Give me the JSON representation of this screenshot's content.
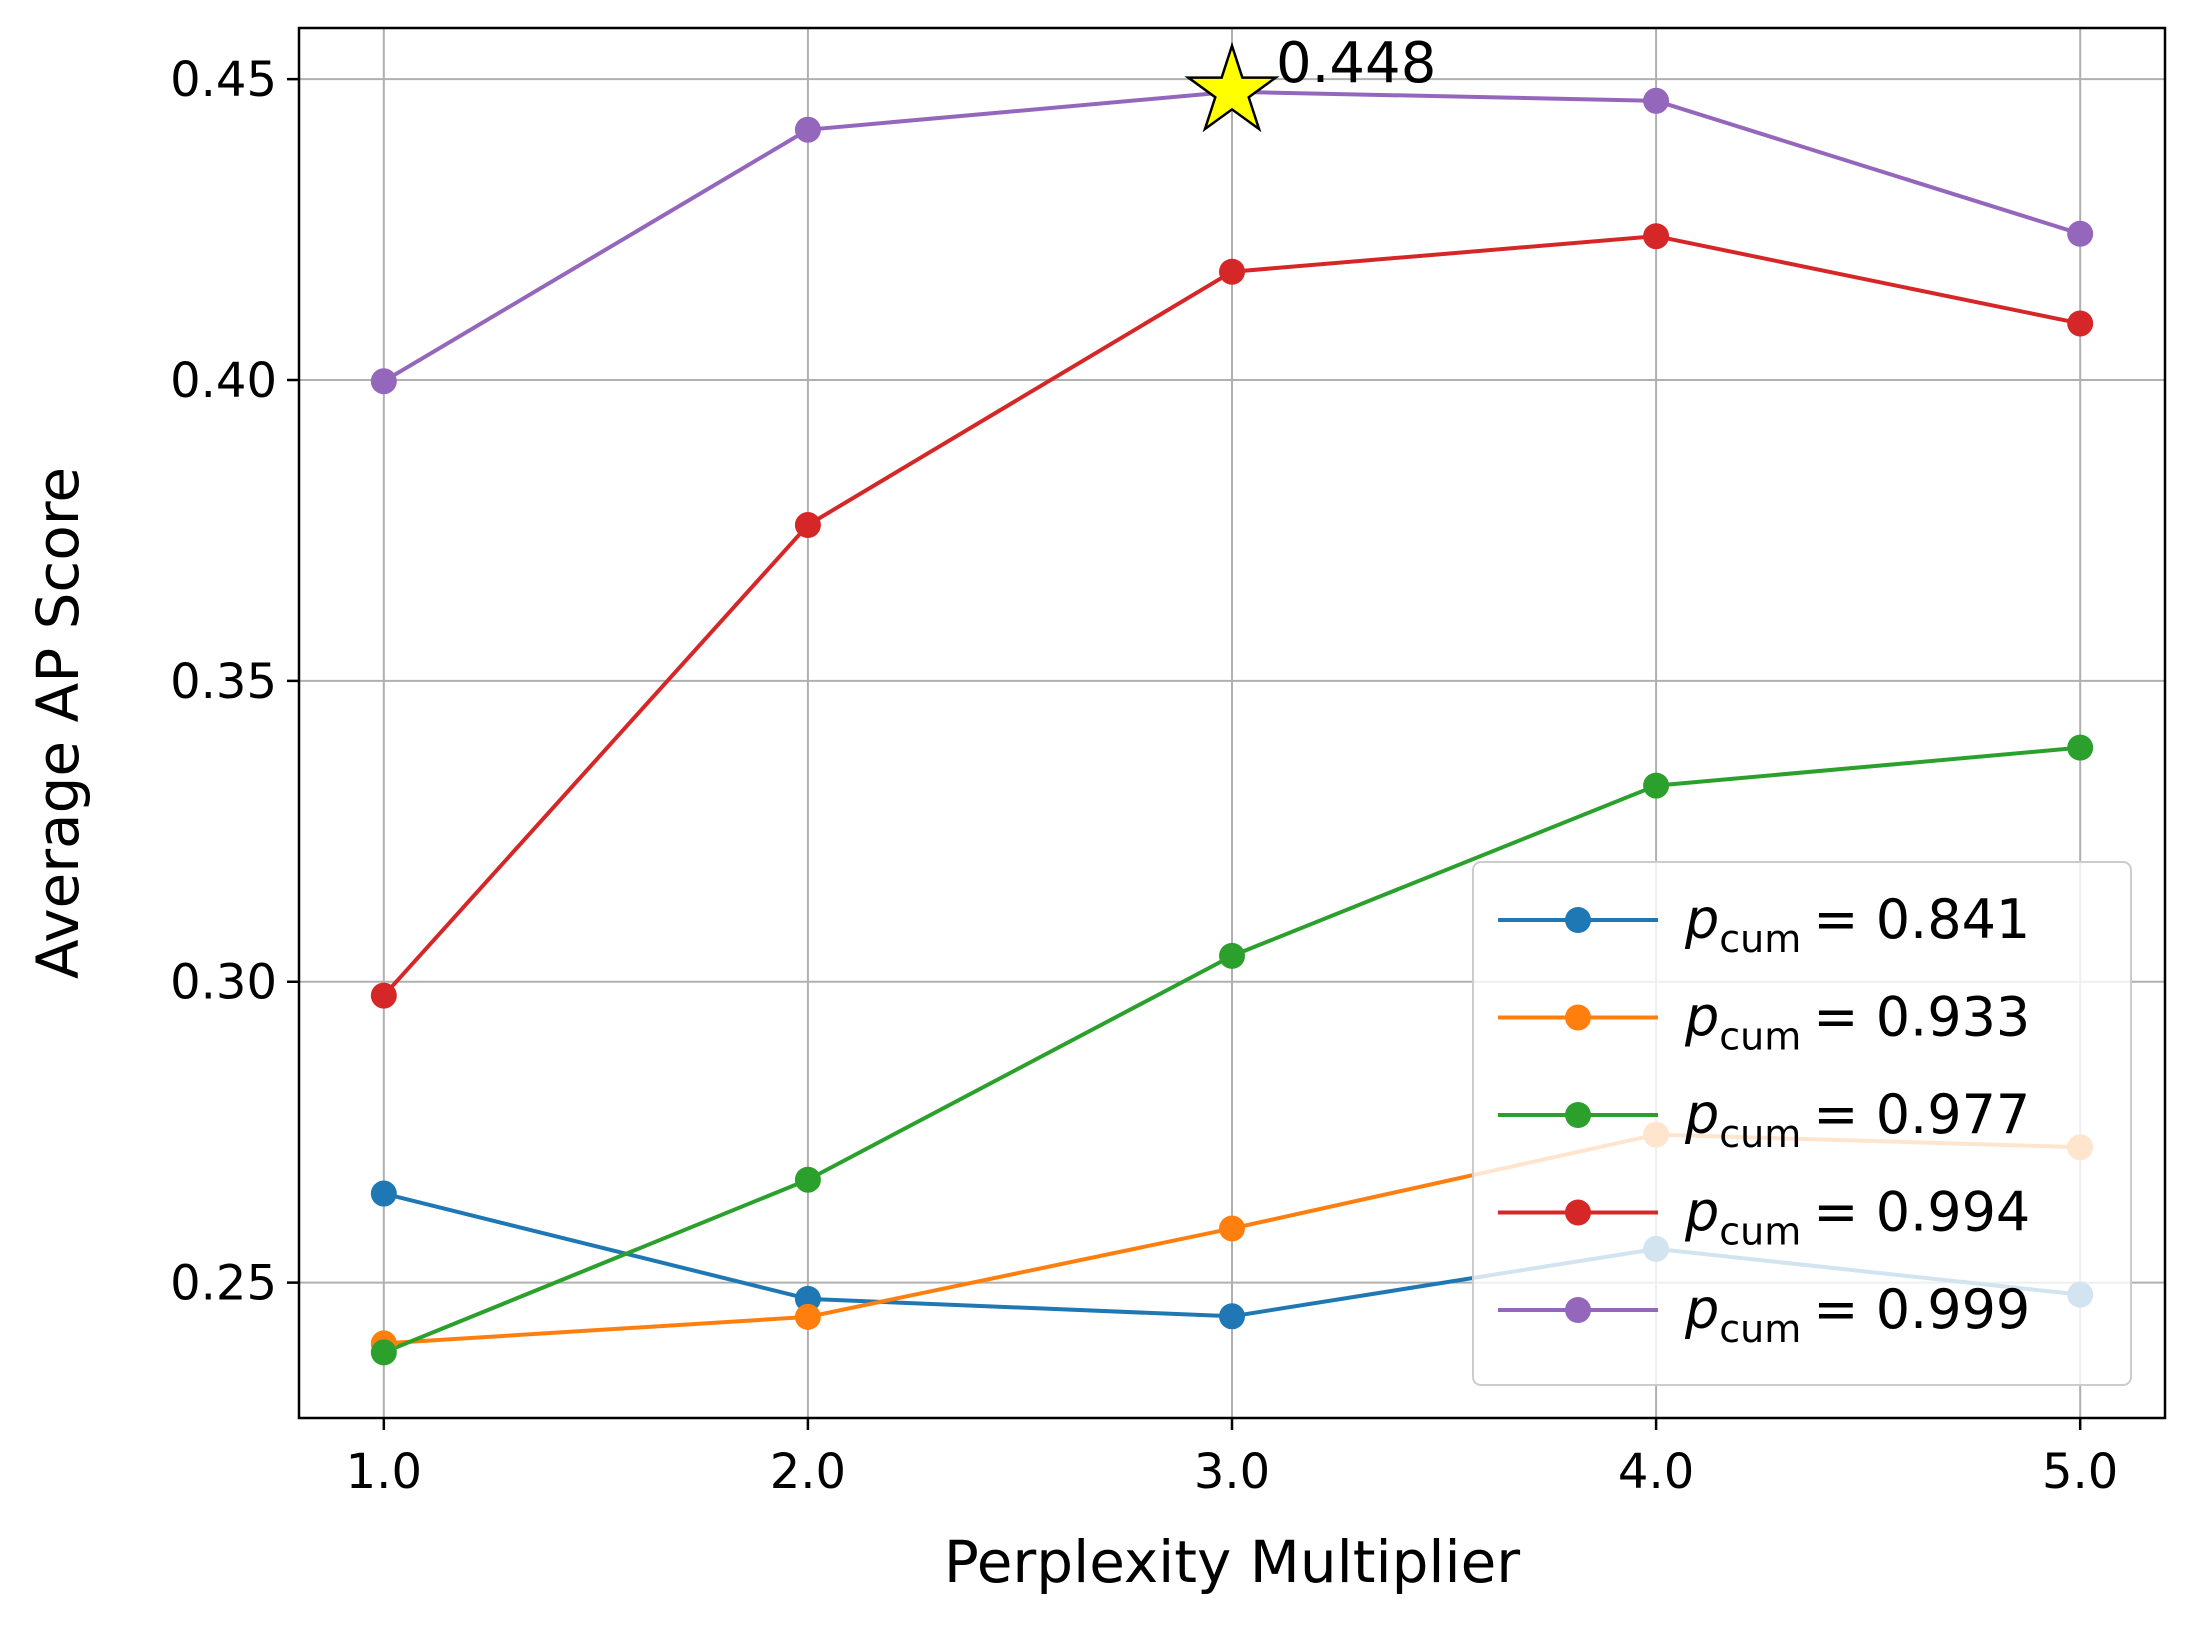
{
  "chart_data": {
    "type": "line",
    "xlabel": "Perplexity Multiplier",
    "ylabel": "Average AP Score",
    "x": [
      1.0,
      2.0,
      3.0,
      4.0,
      5.0
    ],
    "x_tick_labels": [
      "1.0",
      "2.0",
      "3.0",
      "4.0",
      "5.0"
    ],
    "xlim": [
      0.8,
      5.2
    ],
    "ylim": [
      0.2275,
      0.4585
    ],
    "y_ticks": [
      0.25,
      0.3,
      0.35,
      0.4,
      0.45
    ],
    "y_tick_labels": [
      "0.25",
      "0.30",
      "0.35",
      "0.40",
      "0.45"
    ],
    "grid": true,
    "legend_position": "lower-right",
    "series": [
      {
        "name_symbol": "p",
        "name_subscript": "cum",
        "name_value": "= 0.841",
        "color": "#1f77b4",
        "values": [
          0.2648,
          0.2473,
          0.2444,
          0.2556,
          0.248
        ]
      },
      {
        "name_symbol": "p",
        "name_subscript": "cum",
        "name_value": "= 0.933",
        "color": "#ff7f0e",
        "values": [
          0.2399,
          0.2443,
          0.259,
          0.2746,
          0.2725
        ]
      },
      {
        "name_symbol": "p",
        "name_subscript": "cum",
        "name_value": "= 0.977",
        "color": "#2ca02c",
        "values": [
          0.2384,
          0.2671,
          0.3043,
          0.3326,
          0.3389
        ]
      },
      {
        "name_symbol": "p",
        "name_subscript": "cum",
        "name_value": "= 0.994",
        "color": "#d62728",
        "values": [
          0.2977,
          0.3759,
          0.418,
          0.4239,
          0.4094
        ]
      },
      {
        "name_symbol": "p",
        "name_subscript": "cum",
        "name_value": "= 0.999",
        "color": "#9467bd",
        "values": [
          0.3998,
          0.4416,
          0.4479,
          0.4464,
          0.4243
        ]
      }
    ],
    "annotation": {
      "text": "0.448",
      "x": 3.0,
      "y": 0.4479,
      "marker": "star",
      "marker_color": "#ffff00"
    }
  }
}
